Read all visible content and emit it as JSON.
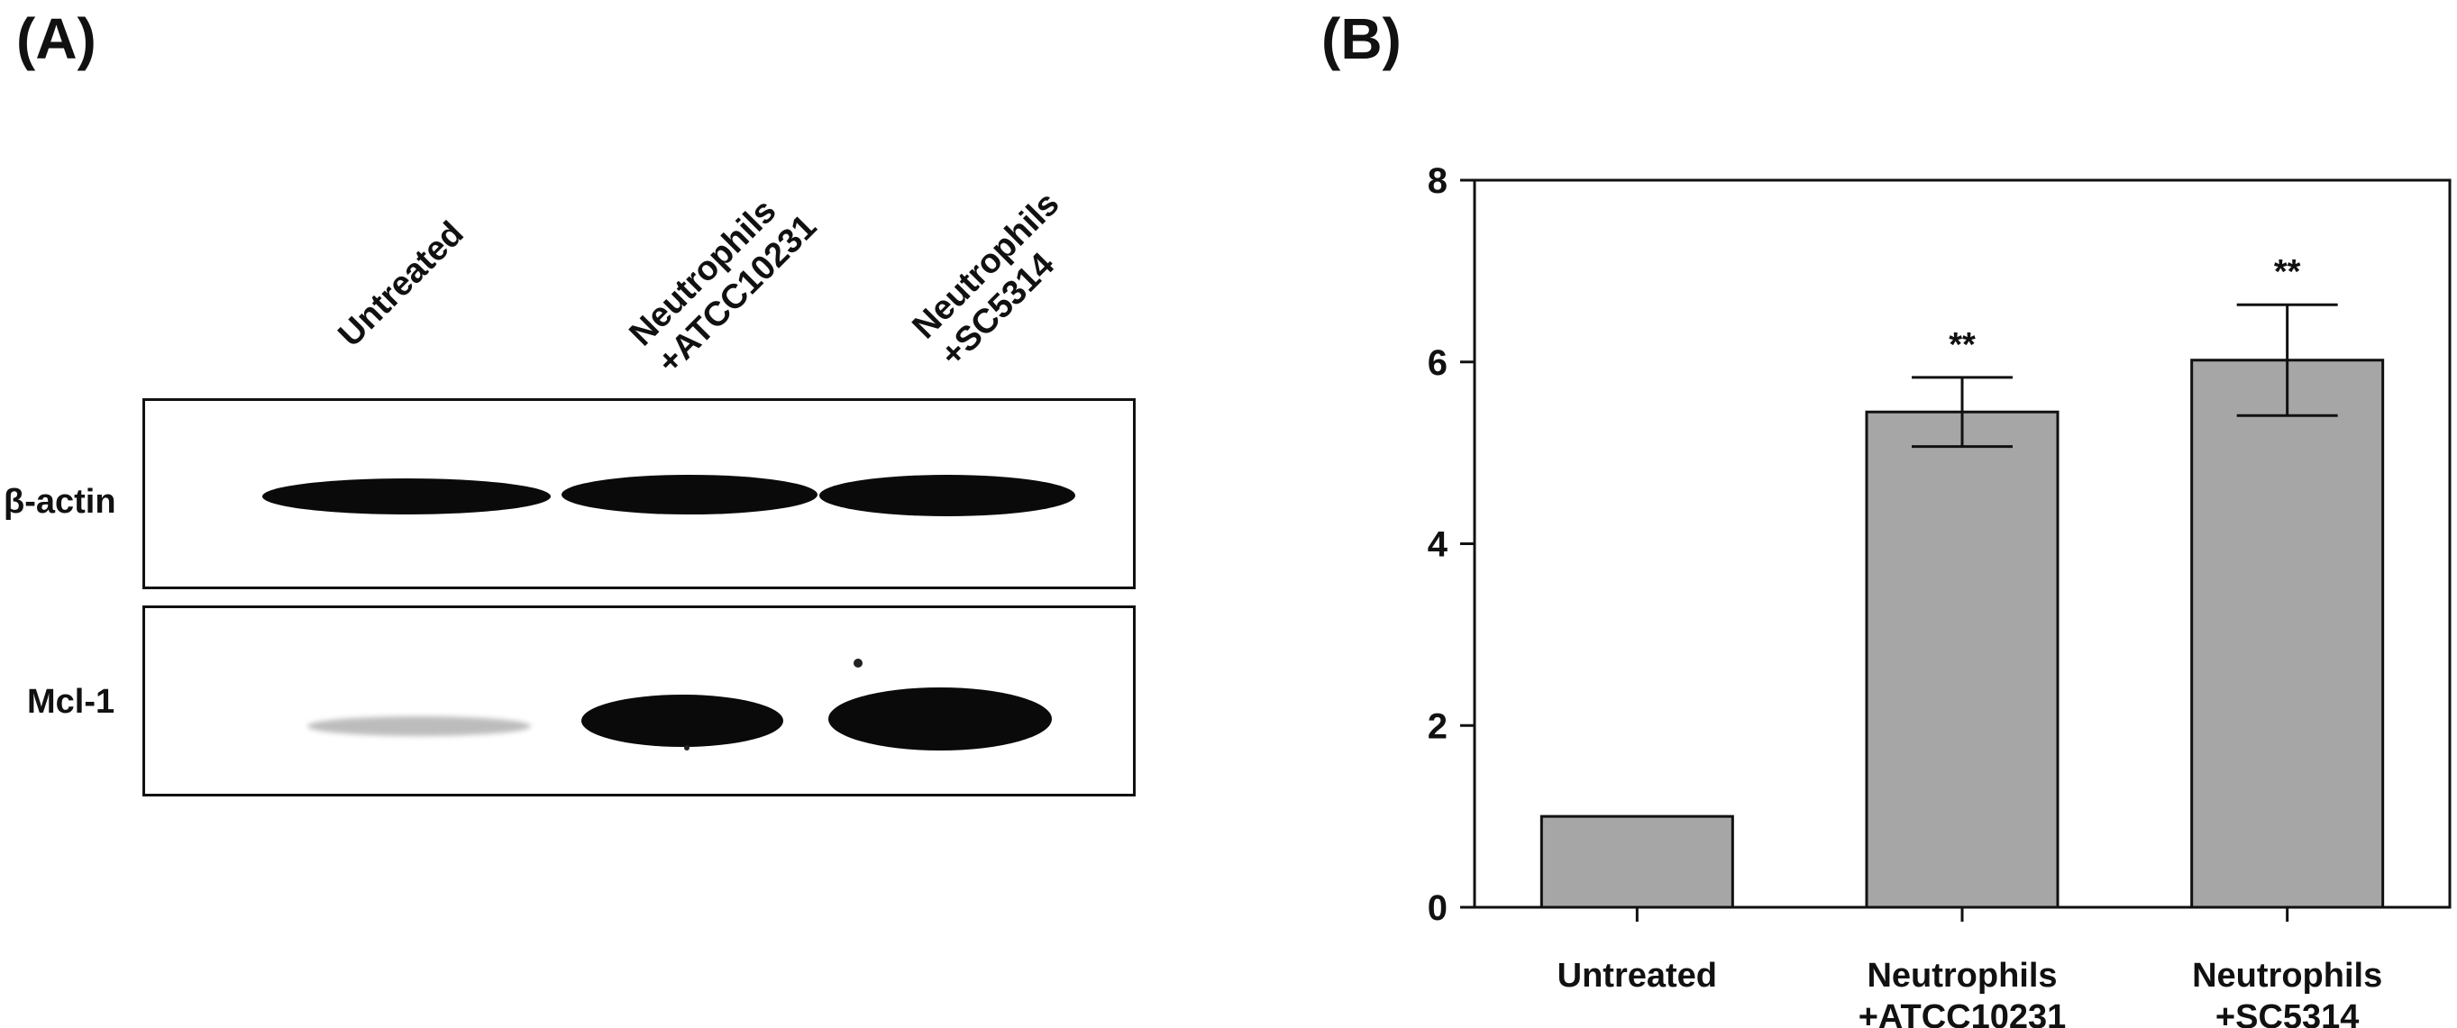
{
  "panel_a": {
    "label": "(A)",
    "lanes": [
      "Untreated",
      "Neutrophils\n+ATCC10231",
      "Neutrophils\n+SC5314"
    ],
    "rows": [
      {
        "name": "β-actin",
        "intensities": [
          0.95,
          0.95,
          0.92
        ]
      },
      {
        "name": "Mcl-1",
        "intensities": [
          0.15,
          0.95,
          1.0
        ]
      }
    ]
  },
  "panel_b": {
    "label": "(B)"
  },
  "chart_data": {
    "type": "bar",
    "title": "",
    "xlabel": "",
    "ylabel": "",
    "categories": [
      "Untreated",
      "Neutrophils\n+ATCC10231",
      "Neutrophils\n+SC5314"
    ],
    "values": [
      1.0,
      5.45,
      6.02
    ],
    "errors": [
      0,
      0.38,
      0.61
    ],
    "significance": [
      "",
      "**",
      "**"
    ],
    "ylim": [
      0,
      8
    ],
    "yticks": [
      "0",
      "2",
      "4",
      "6",
      "8"
    ],
    "grid": false,
    "bar_color": "#a6a6a6",
    "edge_color": "#111111"
  }
}
